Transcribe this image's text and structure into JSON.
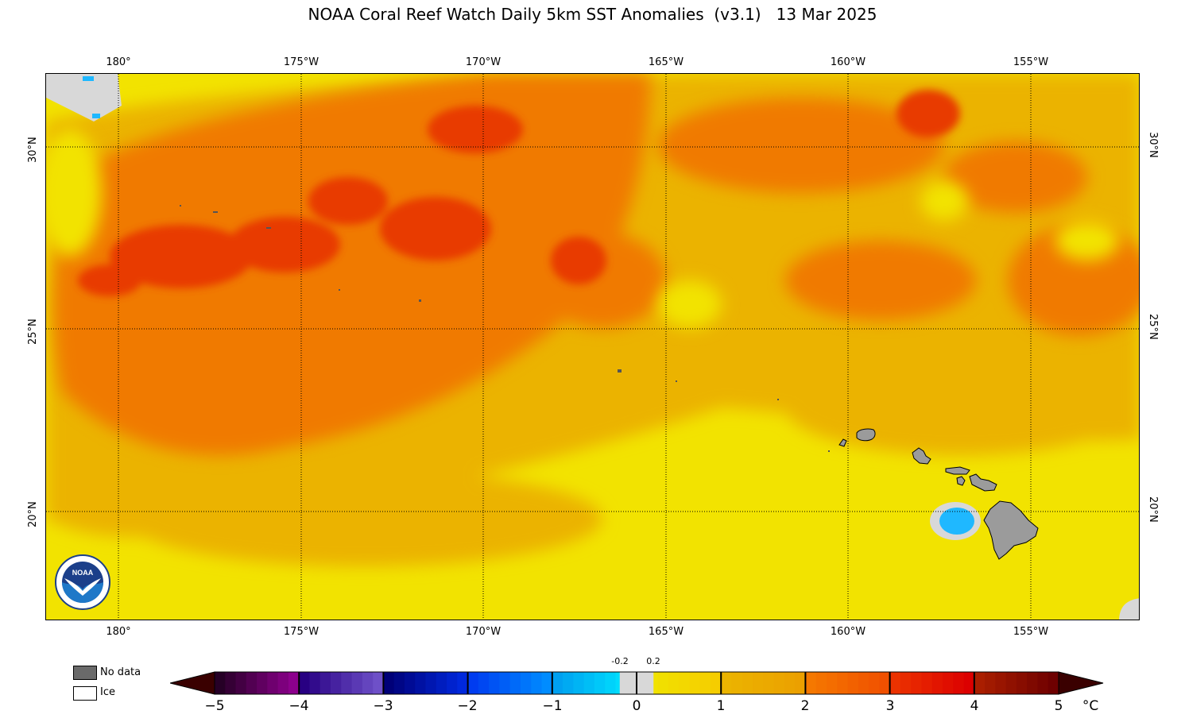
{
  "title": "NOAA Coral Reef Watch Daily 5km SST Anomalies  (v3.1)   13 Mar 2025",
  "lon_ticks": [
    "180°",
    "175°W",
    "170°W",
    "165°W",
    "160°W",
    "155°W"
  ],
  "lat_ticks": [
    "30°N",
    "25°N",
    "20°N"
  ],
  "legend": {
    "nodata_label": "No data",
    "ice_label": "Ice"
  },
  "colorbar": {
    "ticks": [
      "−5",
      "−4",
      "−3",
      "−2",
      "−1",
      "0",
      "1",
      "2",
      "3",
      "4",
      "5"
    ],
    "small_ticks": [
      "-0.2",
      "0.2"
    ],
    "unit": "°C"
  },
  "logo_text": "NOAA",
  "colors": {
    "land": "#9b9b9b",
    "nodata": "#d8d8d8",
    "anomaly_0_1": "#f2e300",
    "anomaly_1_2": "#ebb300",
    "anomaly_2_3": "#f07a00",
    "anomaly_3_4": "#e83a00",
    "cold_spot": "#1fb8ff"
  }
}
